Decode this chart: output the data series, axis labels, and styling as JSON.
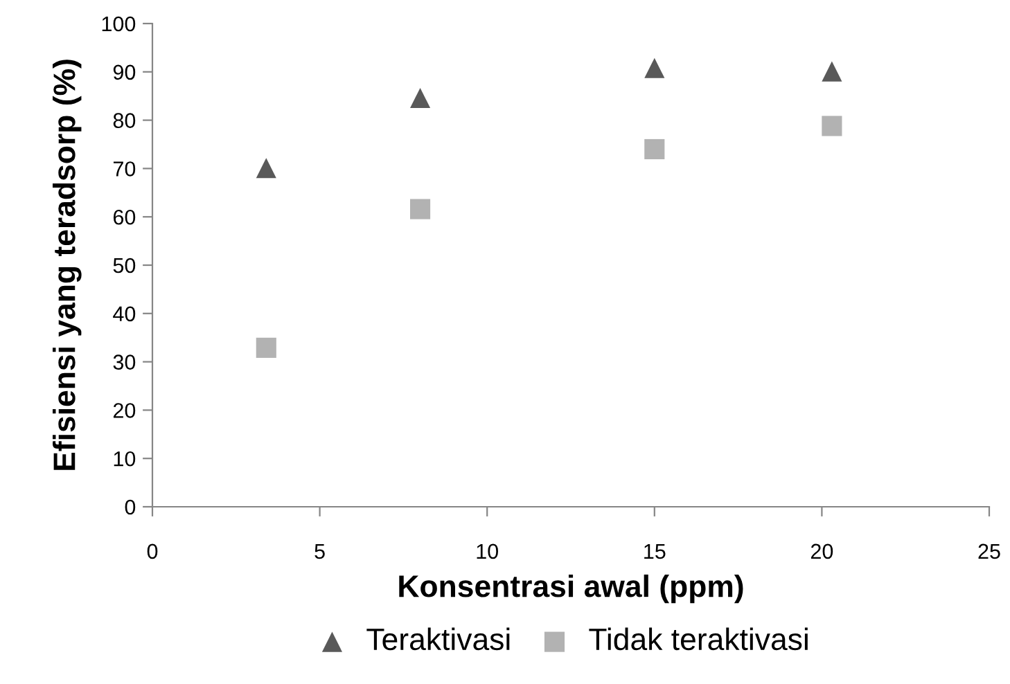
{
  "chart_data": {
    "type": "scatter",
    "xlabel": "Konsentrasi awal (ppm)",
    "ylabel": "Efisiensi yang teradsorp (%)",
    "xlim": [
      0,
      25
    ],
    "xticks": [
      0,
      5,
      10,
      15,
      20,
      25
    ],
    "ylim": [
      0,
      100
    ],
    "yticks": [
      0,
      10,
      20,
      30,
      40,
      50,
      60,
      70,
      80,
      90,
      100
    ],
    "grid": false,
    "legend": "bottom",
    "series": [
      {
        "name": "Teraktivasi",
        "color": "#595959",
        "marker": "triangle",
        "x": [
          3.4,
          8.0,
          15.0,
          20.3
        ],
        "values": [
          70.1,
          84.6,
          90.8,
          90.1
        ]
      },
      {
        "name": "Tidak teraktivasi",
        "color": "#b2b2b2",
        "marker": "square",
        "x": [
          3.4,
          8.0,
          15.0,
          20.3
        ],
        "values": [
          32.9,
          61.6,
          74.0,
          78.8
        ]
      }
    ]
  }
}
